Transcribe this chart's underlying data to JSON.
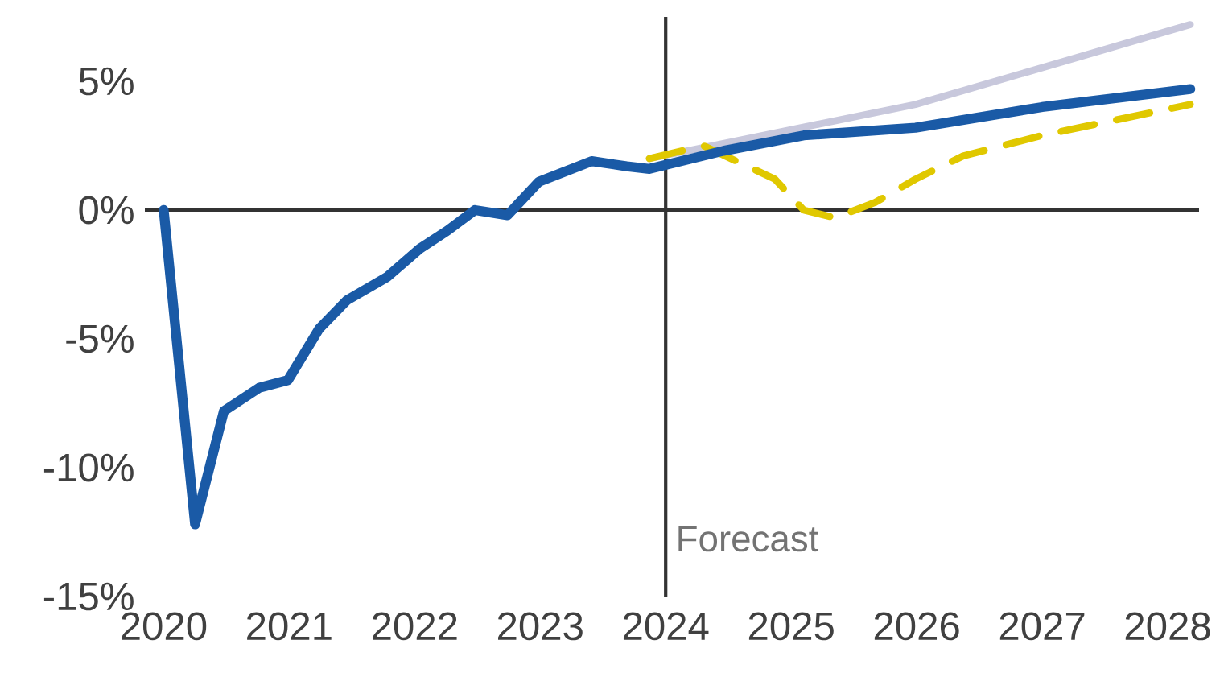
{
  "chart_data": {
    "type": "line",
    "xlim": [
      2019.85,
      2028.25
    ],
    "ylim": [
      -15,
      7.5
    ],
    "xticks": [
      2020,
      2021,
      2022,
      2023,
      2024,
      2025,
      2026,
      2027,
      2028
    ],
    "yticks": [
      {
        "value": -15,
        "label": "-15%"
      },
      {
        "value": -10,
        "label": "-10%"
      },
      {
        "value": -5,
        "label": "-5%"
      },
      {
        "value": 0,
        "label": "0%"
      },
      {
        "value": 5,
        "label": "5%"
      }
    ],
    "ref_lines": [
      {
        "axis": "y",
        "value": 0,
        "color": "#333333"
      },
      {
        "axis": "x",
        "value": 2024,
        "label": "Forecast",
        "color": "#333333"
      }
    ],
    "grid": false,
    "marker": "none",
    "series": [
      {
        "color": "#c8c8dc",
        "line_style": "solid",
        "x": [
          2023.87,
          2025.99,
          2028.18
        ],
        "values": [
          2.0,
          4.1,
          7.2
        ]
      },
      {
        "color": "#e0c800",
        "line_style": "dashed",
        "x": [
          2023.87,
          2024.3,
          2024.87,
          2025.1,
          2025.35,
          2025.67,
          2025.99,
          2026.37,
          2027.0,
          2028.18
        ],
        "values": [
          2.0,
          2.5,
          1.2,
          0,
          -0.3,
          0.3,
          1.2,
          2.1,
          2.9,
          4.1
        ]
      },
      {
        "color": "#1a5aa6",
        "line_style": "solid",
        "x": [
          2020,
          2020.25,
          2020.48,
          2020.76,
          2020.99,
          2021.24,
          2021.46,
          2021.78,
          2022.04,
          2022.26,
          2022.48,
          2022.74,
          2022.99,
          2023.41,
          2023.69,
          2023.87,
          2024.46,
          2025.1,
          2025.99,
          2027.0,
          2028.18
        ],
        "values": [
          0,
          -12.2,
          -7.8,
          -6.9,
          -6.6,
          -4.6,
          -3.5,
          -2.6,
          -1.5,
          -0.8,
          0,
          -0.2,
          1.1,
          1.9,
          1.7,
          1.6,
          2.3,
          2.9,
          3.2,
          4.0,
          4.7
        ]
      }
    ]
  }
}
